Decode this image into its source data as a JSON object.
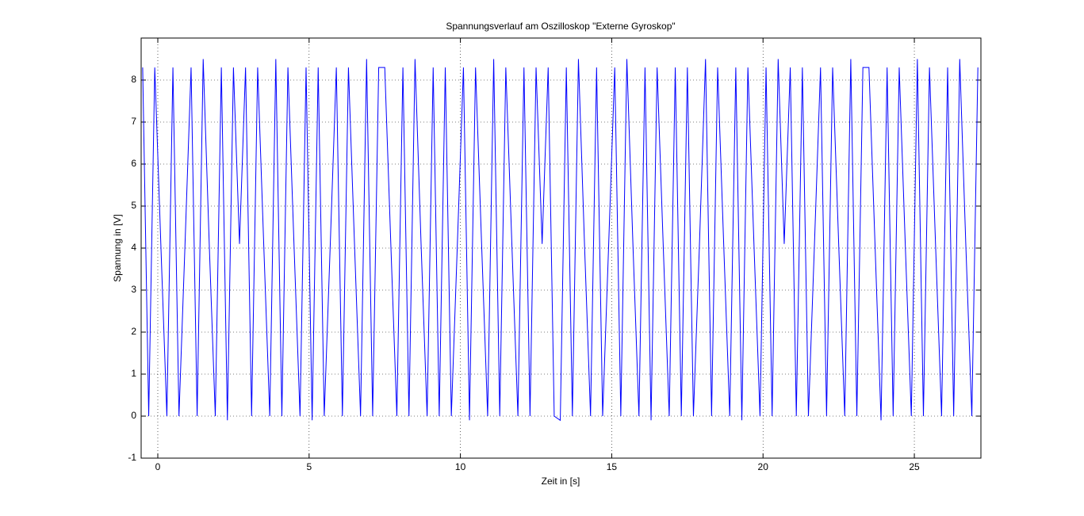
{
  "chart_data": {
    "type": "line",
    "title": "Spannungsverlauf am Oszilloskop \"Externe Gyroskop\"",
    "xlabel": "Zeit in [s]",
    "ylabel": "Spannung in [V]",
    "color": "#0000ff",
    "grid": true,
    "xlim": [
      -0.55,
      27.2
    ],
    "ylim": [
      -1,
      9
    ],
    "xticks": [
      0,
      5,
      10,
      15,
      20,
      25
    ],
    "yticks": [
      -1,
      0,
      1,
      2,
      3,
      4,
      5,
      6,
      7,
      8
    ],
    "x": [
      -0.5,
      -0.3,
      -0.1,
      0.1,
      0.3,
      0.5,
      0.7,
      0.9,
      1.1,
      1.3,
      1.5,
      1.7,
      1.9,
      2.1,
      2.3,
      2.5,
      2.7,
      2.9,
      3.1,
      3.3,
      3.5,
      3.7,
      3.9,
      4.1,
      4.3,
      4.5,
      4.7,
      4.9,
      5.1,
      5.3,
      5.5,
      5.7,
      5.9,
      6.1,
      6.3,
      6.5,
      6.7,
      6.9,
      7.1,
      7.3,
      7.5,
      7.7,
      7.9,
      8.1,
      8.3,
      8.5,
      8.7,
      8.9,
      9.1,
      9.3,
      9.5,
      9.7,
      9.9,
      10.1,
      10.3,
      10.5,
      10.7,
      10.9,
      11.1,
      11.3,
      11.5,
      11.7,
      11.9,
      12.1,
      12.3,
      12.5,
      12.7,
      12.9,
      13.1,
      13.3,
      13.5,
      13.7,
      13.9,
      14.1,
      14.3,
      14.5,
      14.7,
      14.9,
      15.1,
      15.3,
      15.5,
      15.7,
      15.9,
      16.1,
      16.3,
      16.5,
      16.7,
      16.9,
      17.1,
      17.3,
      17.5,
      17.7,
      17.9,
      18.1,
      18.3,
      18.5,
      18.7,
      18.9,
      19.1,
      19.3,
      19.5,
      19.7,
      19.9,
      20.1,
      20.3,
      20.5,
      20.7,
      20.9,
      21.1,
      21.3,
      21.5,
      21.7,
      21.9,
      22.1,
      22.3,
      22.5,
      22.7,
      22.9,
      23.1,
      23.3,
      23.5,
      23.7,
      23.9,
      24.1,
      24.3,
      24.5,
      24.7,
      24.9,
      25.1,
      25.3,
      25.5,
      25.7,
      25.9,
      26.1,
      26.3,
      26.5,
      26.7,
      26.9,
      27.1
    ],
    "values": [
      8.3,
      0,
      8.3,
      4.1,
      0,
      8.3,
      0,
      4.1,
      8.3,
      0,
      8.5,
      4.1,
      0,
      8.3,
      -0.1,
      8.3,
      4.1,
      8.3,
      0,
      8.3,
      4.1,
      0,
      8.5,
      0,
      8.3,
      4.1,
      0,
      8.3,
      -0.1,
      8.3,
      0,
      4.1,
      8.3,
      0,
      8.3,
      4.1,
      0,
      8.5,
      0,
      8.3,
      8.3,
      4.1,
      0,
      8.3,
      0,
      8.5,
      4.1,
      0,
      8.3,
      0,
      8.3,
      0,
      4.1,
      8.3,
      -0.1,
      8.3,
      4.1,
      0,
      8.5,
      0,
      8.3,
      4.1,
      0,
      8.3,
      0,
      8.3,
      4.1,
      8.3,
      0,
      -0.1,
      8.3,
      0,
      8.5,
      4.1,
      0,
      8.3,
      0,
      4.1,
      8.3,
      0,
      8.5,
      4.1,
      0,
      8.3,
      -0.1,
      8.3,
      4.1,
      0,
      8.3,
      0,
      8.3,
      0,
      4.1,
      8.5,
      0,
      8.3,
      4.1,
      0,
      8.3,
      -0.1,
      8.3,
      4.1,
      0,
      8.3,
      0,
      8.5,
      4.1,
      8.3,
      0,
      8.3,
      0,
      4.1,
      8.3,
      0,
      8.3,
      4.1,
      0,
      8.5,
      0,
      8.3,
      8.3,
      4.1,
      -0.1,
      8.3,
      0,
      8.3,
      4.1,
      0,
      8.5,
      0,
      8.3,
      4.1,
      0,
      8.3,
      0,
      8.5,
      4.1,
      0,
      8.3
    ]
  }
}
